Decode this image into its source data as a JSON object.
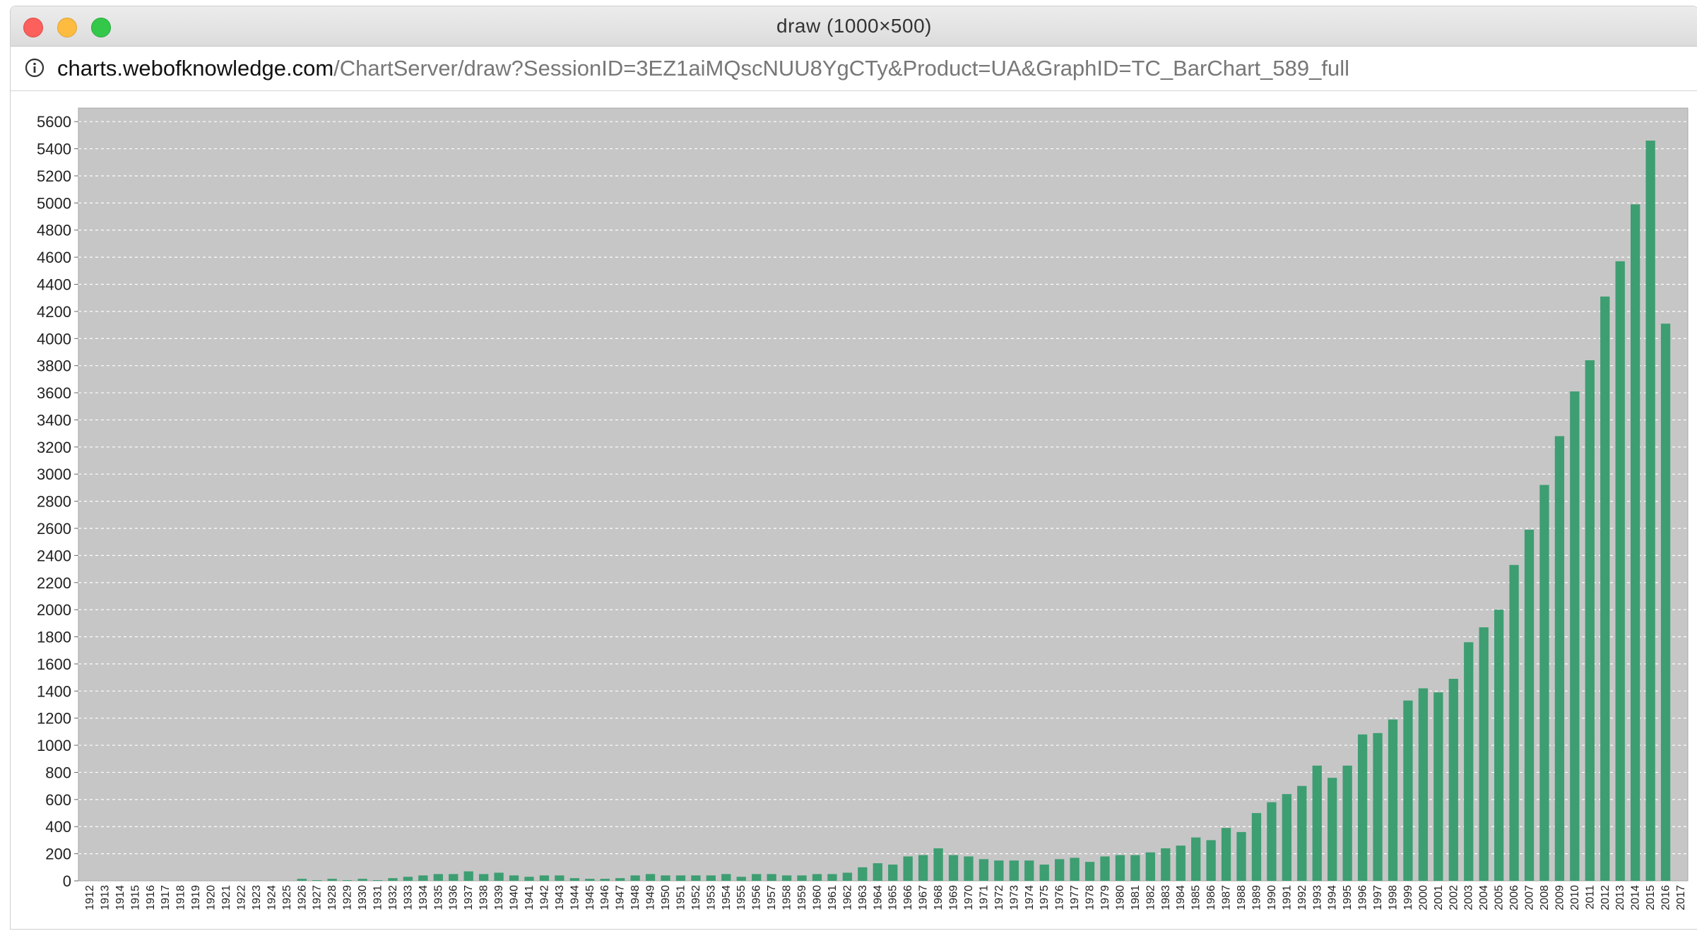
{
  "window": {
    "title": "draw (1000×500)"
  },
  "address_bar": {
    "host": "charts.webofknowledge.com",
    "path": "/ChartServer/draw?SessionID=3EZ1aiMQscNUU8YgCTy&Product=UA&GraphID=TC_BarChart_589_full",
    "icon": "info-icon"
  },
  "colors": {
    "bar": "#3d9e72",
    "plot_background": "#c6c6c6",
    "grid": "#ffffff"
  },
  "chart_data": {
    "type": "bar",
    "title": "",
    "xlabel": "",
    "ylabel": "",
    "ylim": [
      0,
      5700
    ],
    "yticks": [
      0,
      200,
      400,
      600,
      800,
      1000,
      1200,
      1400,
      1600,
      1800,
      2000,
      2200,
      2400,
      2600,
      2800,
      3000,
      3200,
      3400,
      3600,
      3800,
      4000,
      4200,
      4400,
      4600,
      4800,
      5000,
      5200,
      5400,
      5600
    ],
    "grid": true,
    "legend": "none",
    "categories": [
      "1912",
      "1913",
      "1914",
      "1915",
      "1916",
      "1917",
      "1918",
      "1919",
      "1920",
      "1921",
      "1922",
      "1923",
      "1924",
      "1925",
      "1926",
      "1927",
      "1928",
      "1929",
      "1930",
      "1931",
      "1932",
      "1933",
      "1934",
      "1935",
      "1936",
      "1937",
      "1938",
      "1939",
      "1940",
      "1941",
      "1942",
      "1943",
      "1944",
      "1945",
      "1946",
      "1947",
      "1948",
      "1949",
      "1950",
      "1951",
      "1952",
      "1953",
      "1954",
      "1955",
      "1956",
      "1957",
      "1958",
      "1959",
      "1960",
      "1961",
      "1962",
      "1963",
      "1964",
      "1965",
      "1966",
      "1967",
      "1968",
      "1969",
      "1970",
      "1971",
      "1972",
      "1973",
      "1974",
      "1975",
      "1976",
      "1977",
      "1978",
      "1979",
      "1980",
      "1981",
      "1982",
      "1983",
      "1984",
      "1985",
      "1986",
      "1987",
      "1988",
      "1989",
      "1990",
      "1991",
      "1992",
      "1993",
      "1994",
      "1995",
      "1996",
      "1997",
      "1998",
      "1999",
      "2000",
      "2001",
      "2002",
      "2003",
      "2004",
      "2005",
      "2006",
      "2007",
      "2008",
      "2009",
      "2010",
      "2011",
      "2012",
      "2013",
      "2014",
      "2015",
      "2016",
      "2017"
    ],
    "values": [
      0,
      0,
      0,
      0,
      0,
      0,
      0,
      0,
      0,
      0,
      0,
      0,
      0,
      0,
      15,
      5,
      15,
      5,
      15,
      5,
      20,
      30,
      40,
      50,
      50,
      70,
      50,
      60,
      40,
      30,
      40,
      40,
      20,
      15,
      15,
      20,
      40,
      50,
      40,
      40,
      40,
      40,
      50,
      30,
      50,
      50,
      40,
      40,
      50,
      50,
      60,
      100,
      130,
      120,
      180,
      190,
      240,
      190,
      180,
      160,
      150,
      150,
      150,
      120,
      160,
      170,
      140,
      180,
      190,
      190,
      210,
      240,
      260,
      320,
      300,
      390,
      360,
      500,
      580,
      640,
      700,
      850,
      760,
      850,
      1080,
      1090,
      1190,
      1330,
      1420,
      1390,
      1490,
      1760,
      1870,
      2000,
      2330,
      2590,
      2920,
      3280,
      3610,
      3840,
      4310,
      4570,
      4990,
      5460,
      4110,
      0
    ]
  }
}
